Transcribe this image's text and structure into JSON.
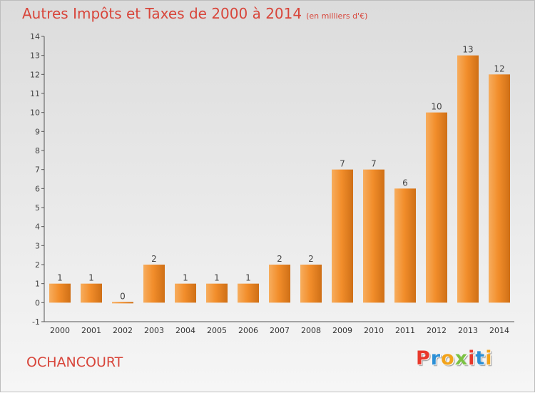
{
  "header": {
    "title": "Autres Impôts et Taxes de 2000 à 2014",
    "subtitle": "(en milliers d'€)"
  },
  "footer": {
    "place": "OCHANCOURT",
    "brand": "Proxiti",
    "brand_colors": [
      "#e8392c",
      "#2b8fd6",
      "#f2a31b",
      "#7cc243",
      "#e8392c",
      "#2b8fd6",
      "#f2a31b"
    ]
  },
  "chart_data": {
    "type": "bar",
    "title": "Autres Impôts et Taxes de 2000 à 2014",
    "categories": [
      "2000",
      "2001",
      "2002",
      "2003",
      "2004",
      "2005",
      "2006",
      "2007",
      "2008",
      "2009",
      "2010",
      "2011",
      "2012",
      "2013",
      "2014"
    ],
    "values": [
      1,
      1,
      0,
      2,
      1,
      1,
      1,
      2,
      2,
      7,
      7,
      6,
      10,
      13,
      12
    ],
    "ylim": [
      -1,
      14
    ],
    "yticks": [
      -1,
      0,
      1,
      2,
      3,
      4,
      5,
      6,
      7,
      8,
      9,
      10,
      11,
      12,
      13,
      14
    ],
    "grid": false,
    "bar_color": "#f28e2b",
    "bar_color_light": "#f7ad5e",
    "bar_color_dark": "#cf6f16"
  }
}
